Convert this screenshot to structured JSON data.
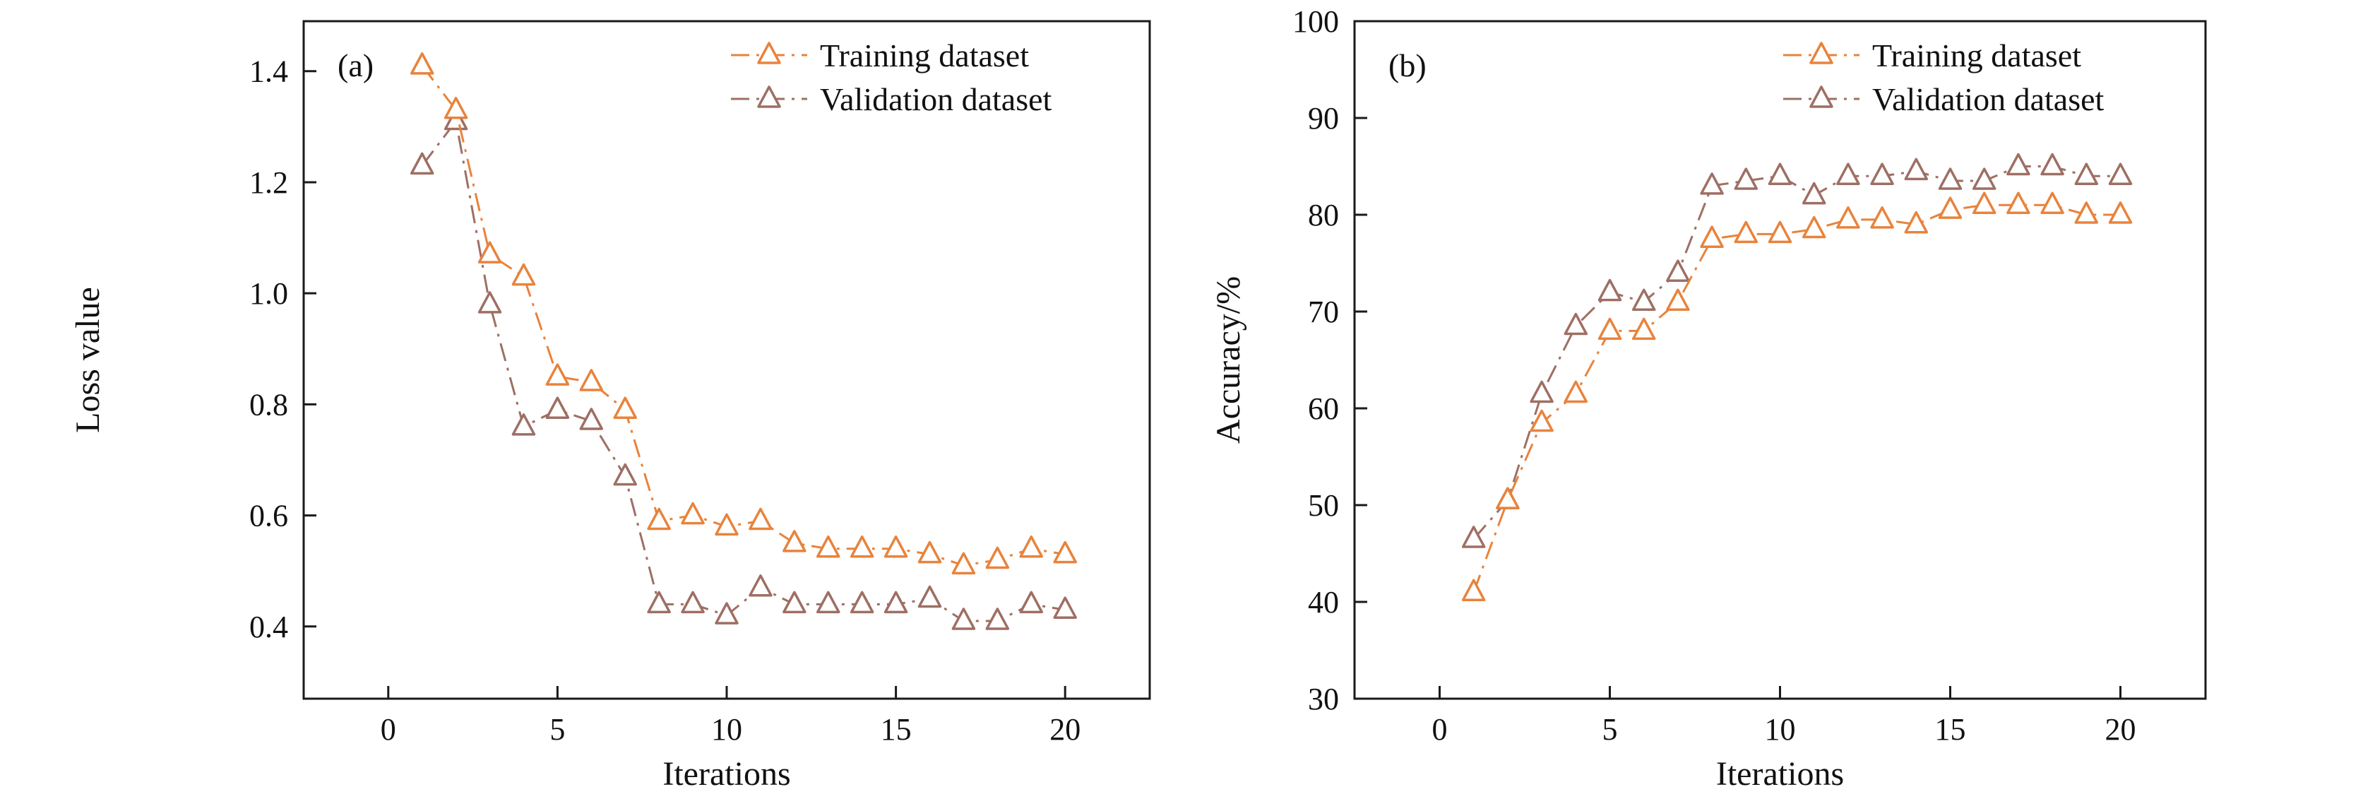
{
  "figure": {
    "background": "#ffffff",
    "axis_color": "#1a1a1a"
  },
  "colors": {
    "training": "#E8833C",
    "validation": "#9E6F64"
  },
  "chart_data": [
    {
      "type": "line",
      "panel_label": "(a)",
      "xlabel": "Iterations",
      "ylabel": "Loss value",
      "xlim": [
        -2.5,
        22.5
      ],
      "ylim": [
        0.27,
        1.49
      ],
      "xticks": [
        0,
        5,
        10,
        15,
        20
      ],
      "xticklabels": [
        "0",
        "5",
        "10",
        "15",
        "20"
      ],
      "yticks": [
        0.4,
        0.6,
        0.8,
        1.0,
        1.2,
        1.4
      ],
      "yticklabels": [
        "0.4",
        "0.6",
        "0.8",
        "1.0",
        "1.2",
        "1.4"
      ],
      "grid": false,
      "legend_position": "top-right-inside",
      "x": [
        1,
        2,
        3,
        4,
        5,
        6,
        7,
        8,
        9,
        10,
        11,
        12,
        13,
        14,
        15,
        16,
        17,
        18,
        19,
        20
      ],
      "series": [
        {
          "name": "Training dataset",
          "color": "#E8833C",
          "marker": "open-triangle-up",
          "linestyle": "dash-dot",
          "values": [
            1.41,
            1.33,
            1.07,
            1.03,
            0.85,
            0.84,
            0.79,
            0.59,
            0.6,
            0.58,
            0.59,
            0.55,
            0.54,
            0.54,
            0.54,
            0.53,
            0.51,
            0.52,
            0.54,
            0.53
          ]
        },
        {
          "name": "Validation dataset",
          "color": "#9E6F64",
          "marker": "open-triangle-up",
          "linestyle": "dash-dot",
          "values": [
            1.23,
            1.31,
            0.98,
            0.76,
            0.79,
            0.77,
            0.67,
            0.44,
            0.44,
            0.42,
            0.47,
            0.44,
            0.44,
            0.44,
            0.44,
            0.45,
            0.41,
            0.41,
            0.44,
            0.43
          ]
        }
      ]
    },
    {
      "type": "line",
      "panel_label": "(b)",
      "xlabel": "Iterations",
      "ylabel": "Accuracy/%",
      "xlim": [
        -2.5,
        22.5
      ],
      "ylim": [
        30,
        100
      ],
      "xticks": [
        0,
        5,
        10,
        15,
        20
      ],
      "xticklabels": [
        "0",
        "5",
        "10",
        "15",
        "20"
      ],
      "yticks": [
        30,
        40,
        50,
        60,
        70,
        80,
        90,
        100
      ],
      "yticklabels": [
        "30",
        "40",
        "50",
        "60",
        "70",
        "80",
        "90",
        "100"
      ],
      "grid": false,
      "legend_position": "top-right-inside",
      "x": [
        1,
        2,
        3,
        4,
        5,
        6,
        7,
        8,
        9,
        10,
        11,
        12,
        13,
        14,
        15,
        16,
        17,
        18,
        19,
        20
      ],
      "series": [
        {
          "name": "Training dataset",
          "color": "#E8833C",
          "marker": "open-triangle-up",
          "linestyle": "dash-dot",
          "values": [
            41,
            50.5,
            58.5,
            61.5,
            68,
            68,
            71,
            77.5,
            78,
            78,
            78.5,
            79.5,
            79.5,
            79,
            80.5,
            81,
            81,
            81,
            80,
            80
          ]
        },
        {
          "name": "Validation dataset",
          "color": "#9E6F64",
          "marker": "open-triangle-up",
          "linestyle": "dash-dot",
          "values": [
            46.5,
            50.5,
            61.5,
            68.5,
            72,
            71,
            74,
            83,
            83.5,
            84,
            82,
            84,
            84,
            84.5,
            83.5,
            83.5,
            85,
            85,
            84,
            84
          ]
        }
      ]
    }
  ]
}
